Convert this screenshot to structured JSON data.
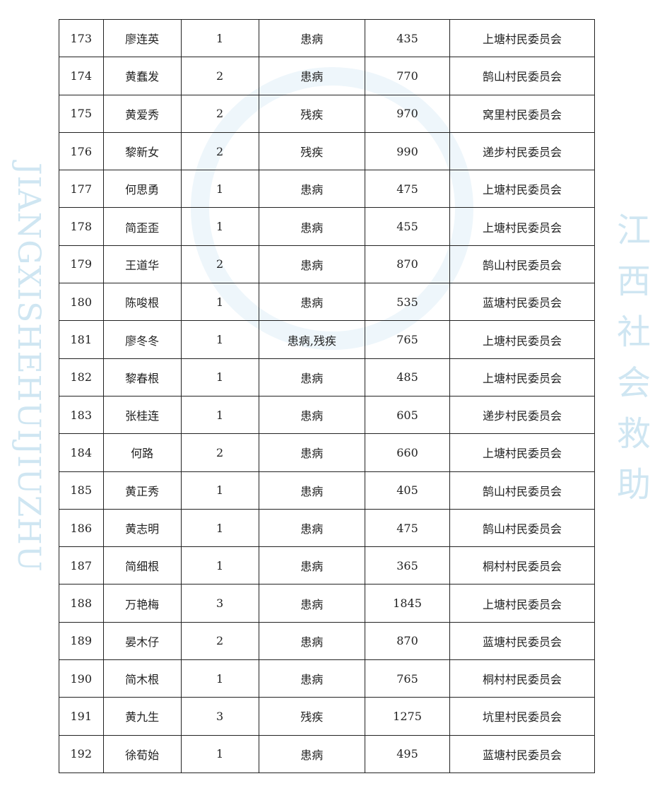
{
  "watermark": {
    "latin": "JIANGXISHEHUIJIUZHU",
    "chinese": "江西社会救助",
    "color": "#cfe6f2"
  },
  "rows": [
    [
      "173",
      "廖连英",
      "1",
      "患病",
      "435",
      "上塘村民委员会"
    ],
    [
      "174",
      "黄蠢发",
      "2",
      "患病",
      "770",
      "鹄山村民委员会"
    ],
    [
      "175",
      "黄爱秀",
      "2",
      "残疾",
      "970",
      "窝里村民委员会"
    ],
    [
      "176",
      "黎新女",
      "2",
      "残疾",
      "990",
      "递步村民委员会"
    ],
    [
      "177",
      "何思勇",
      "1",
      "患病",
      "475",
      "上塘村民委员会"
    ],
    [
      "178",
      "简歪歪",
      "1",
      "患病",
      "455",
      "上塘村民委员会"
    ],
    [
      "179",
      "王道华",
      "2",
      "患病",
      "870",
      "鹄山村民委员会"
    ],
    [
      "180",
      "陈唆根",
      "1",
      "患病",
      "535",
      "蓝塘村民委员会"
    ],
    [
      "181",
      "廖冬冬",
      "1",
      "患病,残疾",
      "765",
      "上塘村民委员会"
    ],
    [
      "182",
      "黎春根",
      "1",
      "患病",
      "485",
      "上塘村民委员会"
    ],
    [
      "183",
      "张桂连",
      "1",
      "患病",
      "605",
      "递步村民委员会"
    ],
    [
      "184",
      "何路",
      "2",
      "患病",
      "660",
      "上塘村民委员会"
    ],
    [
      "185",
      "黄正秀",
      "1",
      "患病",
      "405",
      "鹄山村民委员会"
    ],
    [
      "186",
      "黄志明",
      "1",
      "患病",
      "475",
      "鹄山村民委员会"
    ],
    [
      "187",
      "简细根",
      "1",
      "患病",
      "365",
      "桐村村民委员会"
    ],
    [
      "188",
      "万艳梅",
      "3",
      "患病",
      "1845",
      "上塘村民委员会"
    ],
    [
      "189",
      "晏木仔",
      "2",
      "患病",
      "870",
      "蓝塘村民委员会"
    ],
    [
      "190",
      "简木根",
      "1",
      "患病",
      "765",
      "桐村村民委员会"
    ],
    [
      "191",
      "黄九生",
      "3",
      "残疾",
      "1275",
      "坑里村民委员会"
    ],
    [
      "192",
      "徐荀始",
      "1",
      "患病",
      "495",
      "蓝塘村民委员会"
    ]
  ]
}
